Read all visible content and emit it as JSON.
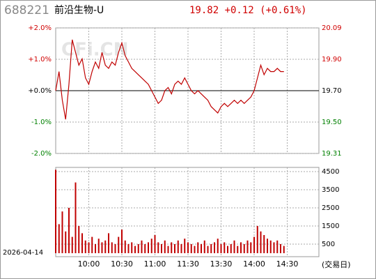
{
  "header": {
    "code": "688221",
    "name": "前沿生物-U",
    "quote": "19.82 +0.12 (+0.61%)",
    "date": "2026-04-14",
    "watermark": "CFi.CN",
    "x_note": "(交易日)"
  },
  "chart_data": [
    {
      "type": "line",
      "x": [
        0,
        3,
        6,
        9,
        12,
        15,
        18,
        21,
        24,
        27,
        30,
        33,
        36,
        39,
        42,
        45,
        48,
        51,
        54,
        57,
        60,
        63,
        66,
        69,
        72,
        75,
        78,
        81,
        84,
        87,
        90,
        93,
        96,
        99,
        102,
        105,
        108,
        111,
        114,
        117,
        120,
        123,
        126,
        129,
        132,
        135,
        138,
        141,
        144,
        147,
        150,
        153,
        156,
        159,
        162,
        165,
        168,
        171,
        174,
        177,
        180,
        183,
        186,
        189,
        192,
        195,
        198,
        201,
        204,
        207
      ],
      "xlim": [
        0,
        240
      ],
      "ylim": [
        -2,
        2
      ],
      "yticks": [
        {
          "value": 2,
          "label": "+2.0%"
        },
        {
          "value": 1,
          "label": "+1.0%"
        },
        {
          "value": 0,
          "label": "+0.0%"
        },
        {
          "value": -1,
          "label": "-1.0%"
        },
        {
          "value": -2,
          "label": "-2.0%"
        }
      ],
      "y2lim": [
        19.306,
        20.094
      ],
      "y2ticks": [
        {
          "value": 20.094,
          "label": "20.09"
        },
        {
          "value": 19.897,
          "label": "19.90"
        },
        {
          "value": 19.7,
          "label": "19.70"
        },
        {
          "value": 19.503,
          "label": "19.50"
        },
        {
          "value": 19.306,
          "label": "19.31"
        }
      ],
      "grid": true,
      "series": [
        {
          "color": "#c00000",
          "axis": "y2",
          "values": [
            19.7,
            19.82,
            19.64,
            19.52,
            19.74,
            20.02,
            19.94,
            19.86,
            19.9,
            19.78,
            19.74,
            19.82,
            19.88,
            19.84,
            19.94,
            19.86,
            19.84,
            19.88,
            19.86,
            19.94,
            20.0,
            19.92,
            19.88,
            19.84,
            19.82,
            19.8,
            19.78,
            19.76,
            19.74,
            19.7,
            19.66,
            19.62,
            19.64,
            19.7,
            19.72,
            19.68,
            19.74,
            19.76,
            19.74,
            19.78,
            19.74,
            19.7,
            19.68,
            19.7,
            19.68,
            19.66,
            19.64,
            19.6,
            19.58,
            19.56,
            19.6,
            19.62,
            19.6,
            19.62,
            19.64,
            19.62,
            19.64,
            19.62,
            19.64,
            19.66,
            19.7,
            19.78,
            19.86,
            19.8,
            19.84,
            19.82,
            19.82,
            19.84,
            19.82,
            19.82
          ]
        }
      ]
    },
    {
      "type": "bar",
      "x": [
        0,
        3,
        6,
        9,
        12,
        15,
        18,
        21,
        24,
        27,
        30,
        33,
        36,
        39,
        42,
        45,
        48,
        51,
        54,
        57,
        60,
        63,
        66,
        69,
        72,
        75,
        78,
        81,
        84,
        87,
        90,
        93,
        96,
        99,
        102,
        105,
        108,
        111,
        114,
        117,
        120,
        123,
        126,
        129,
        132,
        135,
        138,
        141,
        144,
        147,
        150,
        153,
        156,
        159,
        162,
        165,
        168,
        171,
        174,
        177,
        180,
        183,
        186,
        189,
        192,
        195,
        198,
        201,
        204,
        207
      ],
      "xlim": [
        0,
        240
      ],
      "xticks": [
        {
          "value": 30,
          "label": "10:00"
        },
        {
          "value": 60,
          "label": "10:30"
        },
        {
          "value": 90,
          "label": "11:00"
        },
        {
          "value": 120,
          "label": "11:30"
        },
        {
          "value": 150,
          "label": "13:30"
        },
        {
          "value": 180,
          "label": "14:00"
        },
        {
          "value": 210,
          "label": "14:30"
        }
      ],
      "ylim": [
        0,
        4730
      ],
      "yticks": [
        4500,
        3500,
        2500,
        1500,
        500
      ],
      "color": "#c00000",
      "values": [
        4600,
        1600,
        2300,
        1200,
        2500,
        900,
        3900,
        1500,
        1100,
        700,
        600,
        900,
        500,
        800,
        600,
        700,
        1100,
        600,
        500,
        900,
        1300,
        700,
        500,
        600,
        400,
        500,
        700,
        500,
        600,
        800,
        1000,
        600,
        500,
        700,
        400,
        600,
        500,
        700,
        500,
        800,
        600,
        500,
        400,
        600,
        500,
        700,
        400,
        500,
        600,
        800,
        500,
        600,
        400,
        500,
        700,
        400,
        600,
        500,
        700,
        600,
        900,
        1500,
        1200,
        1000,
        800,
        700,
        600,
        700,
        500,
        400
      ]
    }
  ]
}
